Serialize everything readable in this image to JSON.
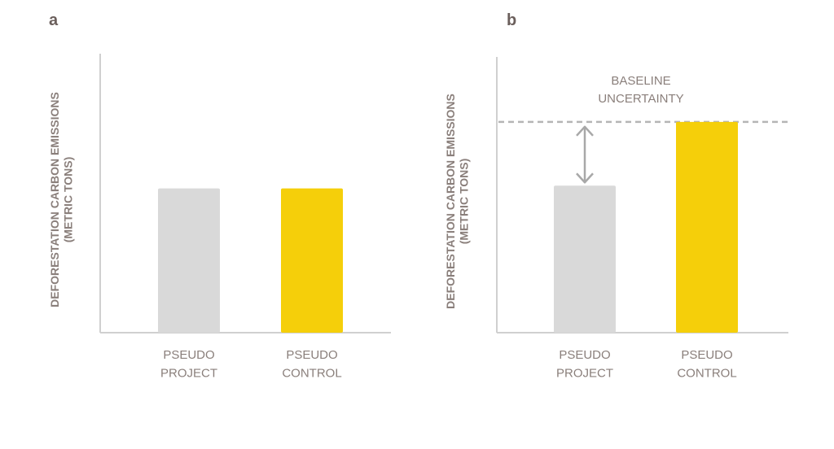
{
  "chart_data": [
    {
      "panel_label": "a",
      "type": "bar",
      "ylabel": [
        "DEFORESTATION CARBON EMISSIONS",
        "(METRIC TONS)"
      ],
      "ylim": [
        0,
        100
      ],
      "categories": [
        [
          "PSEUDO",
          "PROJECT"
        ],
        [
          "PSEUDO",
          "CONTROL"
        ]
      ],
      "values": [
        52,
        52
      ],
      "colors": [
        "#d9d9d9",
        "#f5cf0a"
      ],
      "grid": false,
      "legend": "none"
    },
    {
      "panel_label": "b",
      "type": "bar",
      "ylabel": [
        "DEFORESTATION CARBON EMISSIONS",
        "(METRIC TONS)"
      ],
      "ylim": [
        0,
        100
      ],
      "categories": [
        [
          "PSEUDO",
          "PROJECT"
        ],
        [
          "PSEUDO",
          "CONTROL"
        ]
      ],
      "values": [
        53,
        76
      ],
      "colors": [
        "#d9d9d9",
        "#f5cf0a"
      ],
      "grid": false,
      "legend": "none",
      "reference_line": {
        "value": 76,
        "style": "dashed"
      },
      "annotation": {
        "text": [
          "BASELINE",
          "UNCERTAINTY"
        ],
        "arrow": "double-headed, between project bar top and reference line"
      }
    }
  ],
  "colors": {
    "axis": "#d0d0d0",
    "text": "#8a7f7b",
    "panel_letter": "#6b5f5c",
    "arrow": "#a8a8a8",
    "dash": "#b5b5b5"
  }
}
